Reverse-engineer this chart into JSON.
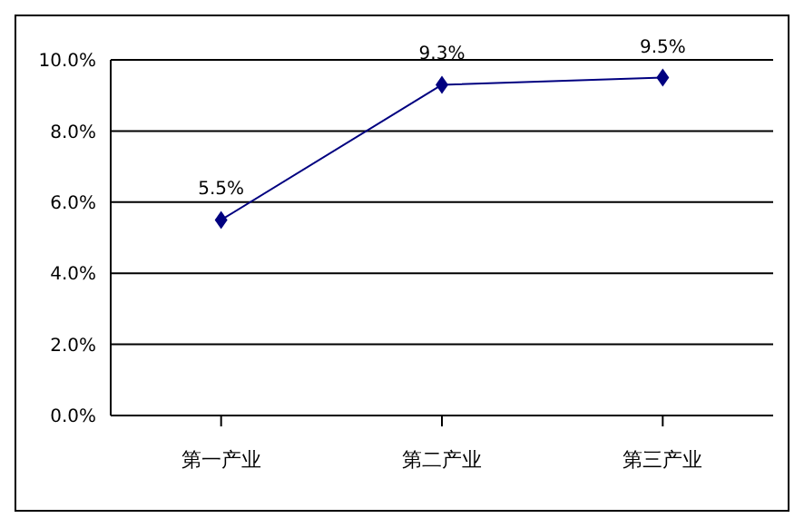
{
  "chart_data": {
    "type": "line",
    "categories": [
      "第一产业",
      "第二产业",
      "第三产业"
    ],
    "series": [
      {
        "color": "#000080",
        "values": [
          5.5,
          9.3,
          9.5
        ],
        "value_labels": [
          "5.5%",
          "9.3%",
          "9.5%"
        ]
      }
    ],
    "ylim": [
      0,
      10
    ],
    "yticks": [
      {
        "value": 0,
        "label": "0.0%"
      },
      {
        "value": 2,
        "label": "2.0%"
      },
      {
        "value": 4,
        "label": "4.0%"
      },
      {
        "value": 6,
        "label": "6.0%"
      },
      {
        "value": 8,
        "label": "8.0%"
      },
      {
        "value": 10,
        "label": "10.0%"
      }
    ],
    "grid": "y",
    "marker": "diamond",
    "line_style": "solid"
  }
}
